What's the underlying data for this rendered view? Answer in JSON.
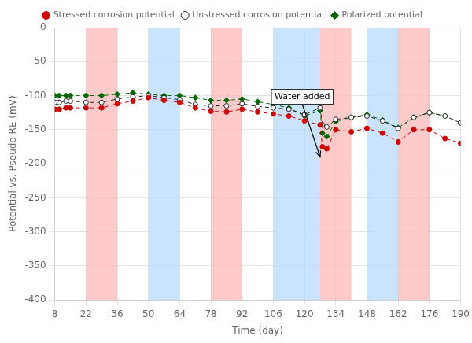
{
  "chart_data": {
    "type": "line",
    "title": "",
    "xlabel": "Time (day)",
    "ylabel": "Potential vs. Pseudo RE (mV)",
    "xlim": [
      8,
      190
    ],
    "ylim": [
      -400,
      0
    ],
    "xticks": [
      8,
      22,
      36,
      50,
      64,
      78,
      92,
      106,
      120,
      134,
      148,
      162,
      176,
      190
    ],
    "yticks": [
      0,
      -50,
      -100,
      -150,
      -200,
      -250,
      -300,
      -350,
      -400
    ],
    "grid": true,
    "legend": "top",
    "x": [
      8,
      10,
      13,
      15,
      22,
      29,
      36,
      43,
      50,
      57,
      64,
      71,
      78,
      85,
      92,
      99,
      106,
      113,
      120,
      127,
      128,
      130,
      134,
      141,
      148,
      155,
      162,
      169,
      176,
      183,
      190
    ],
    "series": [
      {
        "name": "Stressed corrosion potential",
        "color": "#cc0000",
        "marker": "circle",
        "line_style": "dashed",
        "values": [
          -120,
          -120,
          -118,
          -118,
          -118,
          -118,
          -112,
          -108,
          -103,
          -107,
          -110,
          -118,
          -123,
          -124,
          -120,
          -124,
          -127,
          -130,
          -137,
          -143,
          -175,
          -178,
          -150,
          -153,
          -148,
          -155,
          -168,
          -150,
          -150,
          -163,
          -170
        ]
      },
      {
        "name": "Unstressed corrosion potential",
        "color": "#222222",
        "marker": "open_circle",
        "line_style": "dashed",
        "values": [
          -110,
          -110,
          -108,
          -108,
          -110,
          -110,
          -105,
          -102,
          -100,
          -103,
          -106,
          -113,
          -115,
          -115,
          -112,
          -116,
          -118,
          -120,
          -128,
          -118,
          -143,
          -146,
          -135,
          -132,
          -130,
          -137,
          -148,
          -132,
          -125,
          -130,
          -140
        ]
      },
      {
        "name": "Polarized potential",
        "color": "#006600",
        "marker": "diamond",
        "line_style": "dashed",
        "values": [
          -100,
          -100,
          -100,
          -100,
          -100,
          -100,
          -98,
          -96,
          -98,
          -100,
          -100,
          -103,
          -107,
          -107,
          -105,
          -109,
          -113,
          -118,
          -130,
          -122,
          -155,
          -160,
          -138,
          -132,
          -128,
          -136,
          -147,
          -132,
          -125,
          -130,
          -140
        ]
      }
    ],
    "bands": [
      {
        "from": 22,
        "to": 36,
        "color": "#ffb3b3"
      },
      {
        "from": 78,
        "to": 92,
        "color": "#ffb3b3"
      },
      {
        "from": 127,
        "to": 141,
        "color": "#ffb3b3"
      },
      {
        "from": 162,
        "to": 176,
        "color": "#ffb3b3"
      },
      {
        "from": 50,
        "to": 64,
        "color": "#b3d9ff"
      },
      {
        "from": 106,
        "to": 127,
        "color": "#b3d9ff"
      },
      {
        "from": 148,
        "to": 162,
        "color": "#b3d9ff"
      }
    ],
    "annotations": [
      {
        "text": "Water added",
        "x": 127,
        "y": -190,
        "text_x": 119,
        "text_y": -108
      }
    ]
  }
}
